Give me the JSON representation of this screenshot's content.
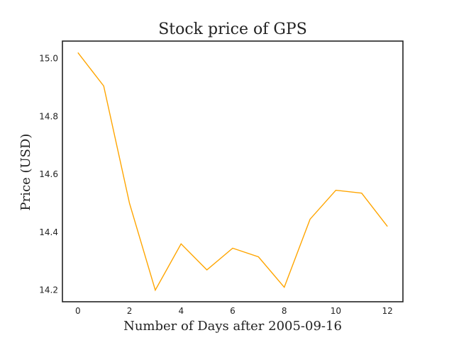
{
  "chart_data": {
    "type": "line",
    "title": "Stock price of GPS",
    "xlabel": "Number of Days after 2005-09-16",
    "ylabel": "Price (USD)",
    "xlim": [
      -0.6,
      12.6
    ],
    "ylim": [
      14.16,
      15.06
    ],
    "x_ticks": [
      0,
      2,
      4,
      6,
      8,
      10,
      12
    ],
    "x_tick_labels": [
      "0",
      "2",
      "4",
      "6",
      "8",
      "10",
      "12"
    ],
    "y_ticks": [
      14.2,
      14.4,
      14.6,
      14.8,
      15.0
    ],
    "y_tick_labels": [
      "14.2",
      "14.4",
      "14.6",
      "14.8",
      "15.0"
    ],
    "grid": false,
    "legend": "none",
    "series": [
      {
        "color": "#FFA500",
        "x": [
          0,
          1,
          2,
          3,
          4,
          5,
          6,
          7,
          8,
          9,
          10,
          11,
          12
        ],
        "values": [
          15.02,
          14.905,
          14.5,
          14.2,
          14.36,
          14.27,
          14.345,
          14.315,
          14.21,
          14.445,
          14.545,
          14.535,
          14.42
        ]
      }
    ]
  }
}
